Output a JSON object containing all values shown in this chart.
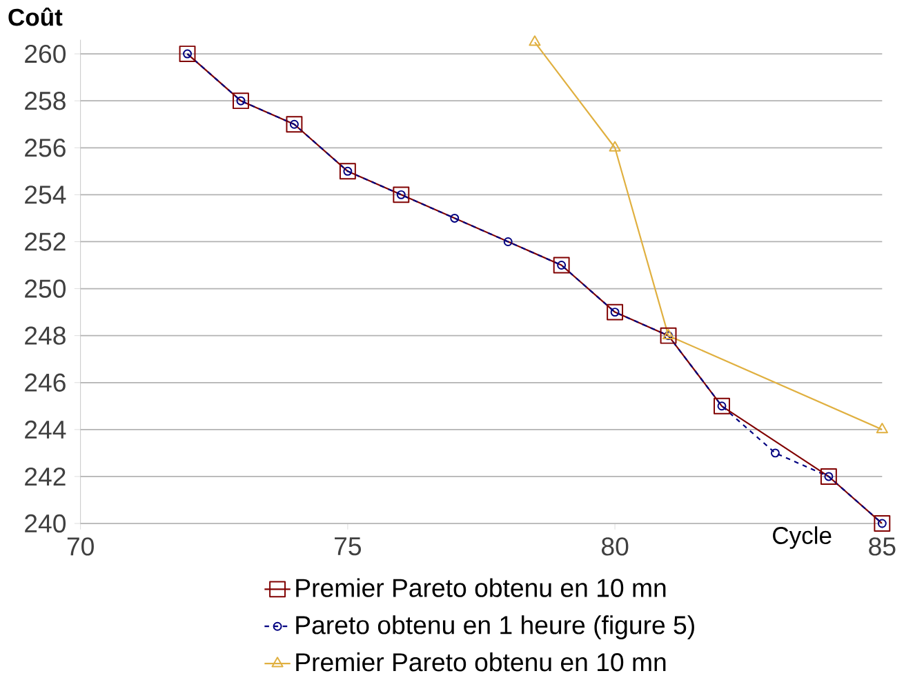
{
  "chart_data": {
    "type": "line",
    "xlabel": "Cycle",
    "ylabel": "Coût",
    "xlim": [
      70,
      85
    ],
    "xticks": [
      70,
      75,
      80,
      85
    ],
    "ylim": [
      240,
      260.6
    ],
    "yticks": [
      240,
      242,
      244,
      246,
      248,
      250,
      252,
      254,
      256,
      258,
      260
    ],
    "grid": "y",
    "legend": "bottom",
    "series": [
      {
        "name": "Premier Pareto obtenu en 10 mn",
        "color": "#800000",
        "marker": "square",
        "line_style": "solid",
        "x": [
          72,
          73,
          74,
          75,
          76,
          79,
          80,
          81,
          82,
          84,
          85
        ],
        "values": [
          260,
          258,
          257,
          255,
          254,
          251,
          249,
          248,
          245,
          242,
          240
        ]
      },
      {
        "name": "Pareto obtenu en 1 heure (figure 5)",
        "color": "#000080",
        "marker": "circle",
        "line_style": "dashed",
        "x": [
          72,
          73,
          74,
          75,
          76,
          77,
          78,
          79,
          80,
          81,
          82,
          83,
          84,
          85
        ],
        "values": [
          260,
          258,
          257,
          255,
          254,
          253,
          252,
          251,
          249,
          248,
          245,
          243,
          242,
          240
        ]
      },
      {
        "name": "Premier Pareto obtenu en 10 mn",
        "color": "#e0b040",
        "marker": "triangle",
        "line_style": "solid",
        "x": [
          78.5,
          80,
          81,
          85
        ],
        "values": [
          260.5,
          256,
          248,
          244
        ]
      }
    ]
  }
}
